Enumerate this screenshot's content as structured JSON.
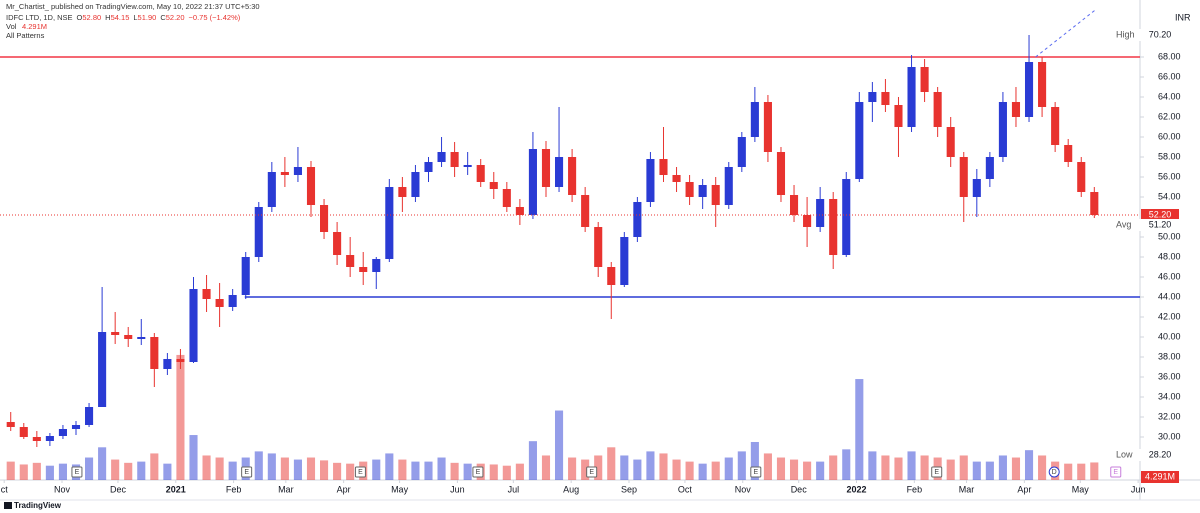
{
  "header": {
    "publisher": "Mr_Chartist_ published on TradingView.com, May 10, 2022 21:37 UTC+5:30",
    "symbol": "IDFC LTD, 1D, NSE",
    "ohlc": [
      {
        "key": "O",
        "value": "52.80"
      },
      {
        "key": "H",
        "value": "54.15"
      },
      {
        "key": "L",
        "value": "51.90"
      },
      {
        "key": "C",
        "value": "52.20"
      }
    ],
    "change": "−0.75 (−1.42%)",
    "volume_key": "Vol",
    "indicator": "All Patterns"
  },
  "footer": {
    "brand": "TradingView"
  },
  "chart_data": {
    "type": "candlestick",
    "currency": "INR",
    "up_color": "#2a3bd4",
    "down_color": "#e8332f",
    "xlim": [
      -2.25,
      609
    ],
    "ylim": [
      25.7,
      72.7
    ],
    "y2lim": [
      0,
      115
    ],
    "xticks": [
      {
        "value": 0,
        "label": "ct"
      },
      {
        "value": 31,
        "label": "Nov"
      },
      {
        "value": 61,
        "label": "Dec"
      },
      {
        "value": 92,
        "label": "2021"
      },
      {
        "value": 123,
        "label": "Feb"
      },
      {
        "value": 151,
        "label": "Mar"
      },
      {
        "value": 182,
        "label": "Apr"
      },
      {
        "value": 212,
        "label": "May"
      },
      {
        "value": 243,
        "label": "Jun"
      },
      {
        "value": 273,
        "label": "Jul"
      },
      {
        "value": 304,
        "label": "Aug"
      },
      {
        "value": 335,
        "label": "Sep"
      },
      {
        "value": 365,
        "label": "Oct"
      },
      {
        "value": 396,
        "label": "Nov"
      },
      {
        "value": 426,
        "label": "Dec"
      },
      {
        "value": 457,
        "label": "2022"
      },
      {
        "value": 488,
        "label": "Feb"
      },
      {
        "value": 516,
        "label": "Mar"
      },
      {
        "value": 547,
        "label": "Apr"
      },
      {
        "value": 577,
        "label": "May"
      },
      {
        "value": 608,
        "label": "Jun"
      }
    ],
    "yticks": [
      {
        "value": 30,
        "label": "30.00"
      },
      {
        "value": 32,
        "label": "32.00"
      },
      {
        "value": 34,
        "label": "34.00"
      },
      {
        "value": 36,
        "label": "36.00"
      },
      {
        "value": 38,
        "label": "38.00"
      },
      {
        "value": 40,
        "label": "40.00"
      },
      {
        "value": 42,
        "label": "42.00"
      },
      {
        "value": 44,
        "label": "44.00"
      },
      {
        "value": 46,
        "label": "46.00"
      },
      {
        "value": 48,
        "label": "48.00"
      },
      {
        "value": 50,
        "label": "50.00"
      },
      {
        "value": 54,
        "label": "54.00"
      },
      {
        "value": 56,
        "label": "56.00"
      },
      {
        "value": 58,
        "label": "58.00"
      },
      {
        "value": 60,
        "label": "60.00"
      },
      {
        "value": 62,
        "label": "62.00"
      },
      {
        "value": 64,
        "label": "64.00"
      },
      {
        "value": 66,
        "label": "66.00"
      },
      {
        "value": 68,
        "label": "68.00"
      }
    ],
    "x": [
      3.5,
      10.5,
      17.5,
      24.5,
      31.5,
      38.5,
      45.5,
      52.5,
      59.5,
      66.5,
      73.5,
      80.5,
      87.5,
      94.5,
      101.5,
      108.5,
      115.5,
      122.5,
      129.5,
      136.5,
      143.5,
      150.5,
      157.5,
      164.5,
      171.5,
      178.5,
      185.5,
      192.5,
      199.5,
      206.5,
      213.5,
      220.5,
      227.5,
      234.5,
      241.5,
      248.5,
      255.5,
      262.5,
      269.5,
      276.5,
      283.5,
      290.5,
      297.5,
      304.5,
      311.5,
      318.5,
      325.5,
      332.5,
      339.5,
      346.5,
      353.5,
      360.5,
      367.5,
      374.5,
      381.5,
      388.5,
      395.5,
      402.5,
      409.5,
      416.5,
      423.5,
      430.5,
      437.5,
      444.5,
      451.5,
      458.5,
      465.5,
      472.5,
      479.5,
      486.5,
      493.5,
      500.5,
      507.5,
      514.5,
      521.5,
      528.5,
      535.5,
      542.5,
      549.5,
      556.5,
      563.5,
      570.5,
      577.5,
      584.5
    ],
    "open": [
      31.5,
      31.0,
      30.0,
      29.6,
      30.1,
      30.8,
      31.2,
      33.0,
      40.5,
      40.2,
      39.8,
      40.0,
      36.8,
      37.8,
      37.5,
      44.8,
      43.8,
      43.0,
      44.2,
      48.0,
      53.0,
      56.5,
      56.2,
      57.0,
      53.2,
      50.5,
      48.2,
      47.0,
      46.5,
      47.8,
      55.0,
      54.0,
      56.5,
      57.5,
      58.5,
      57.0,
      57.2,
      55.5,
      54.8,
      53.0,
      52.2,
      58.8,
      55.0,
      58.0,
      54.2,
      51.0,
      47.0,
      45.2,
      50.0,
      53.5,
      57.8,
      56.2,
      55.5,
      54.0,
      55.2,
      53.2,
      57.0,
      60.0,
      63.5,
      58.5,
      54.2,
      52.2,
      51.0,
      53.8,
      48.2,
      55.8,
      63.5,
      64.5,
      63.2,
      61.0,
      67.0,
      64.5,
      61.0,
      58.0,
      54.0,
      55.8,
      58.0,
      63.5,
      62.0,
      67.5,
      63.0,
      59.2,
      57.5,
      54.5
    ],
    "high": [
      32.5,
      31.4,
      30.6,
      30.4,
      31.2,
      31.6,
      33.4,
      45.0,
      42.5,
      41.0,
      41.8,
      40.4,
      38.4,
      38.8,
      46.0,
      46.2,
      45.4,
      44.8,
      48.5,
      53.5,
      57.5,
      58.0,
      59.0,
      57.6,
      53.8,
      51.5,
      50.0,
      48.5,
      48.0,
      55.8,
      56.0,
      57.2,
      58.0,
      60.0,
      59.5,
      58.5,
      57.8,
      56.5,
      55.5,
      53.8,
      60.5,
      59.6,
      63.0,
      58.8,
      55.0,
      51.5,
      47.5,
      50.5,
      54.0,
      58.5,
      61.0,
      57.0,
      56.2,
      55.8,
      56.0,
      57.5,
      60.5,
      65.0,
      64.2,
      59.0,
      55.2,
      54.0,
      55.0,
      54.5,
      56.5,
      64.5,
      65.5,
      65.8,
      64.0,
      68.2,
      67.8,
      65.0,
      62.0,
      58.5,
      56.8,
      58.5,
      64.5,
      65.0,
      70.2,
      68.0,
      63.5,
      59.8,
      58.0,
      55.0
    ],
    "low": [
      30.6,
      29.8,
      29.0,
      29.1,
      29.8,
      30.2,
      31.0,
      33.0,
      39.3,
      39.0,
      39.2,
      35.0,
      36.2,
      36.8,
      37.4,
      42.5,
      41.0,
      42.6,
      43.8,
      47.5,
      52.5,
      55.0,
      55.5,
      52.0,
      49.8,
      47.2,
      46.0,
      45.2,
      44.8,
      47.5,
      52.5,
      53.5,
      55.5,
      57.0,
      56.0,
      56.2,
      55.0,
      53.8,
      52.5,
      51.2,
      51.8,
      54.0,
      54.5,
      53.5,
      50.5,
      46.0,
      41.8,
      45.0,
      49.5,
      53.0,
      55.5,
      54.5,
      53.2,
      52.8,
      51.0,
      52.8,
      56.5,
      59.5,
      57.5,
      53.5,
      51.5,
      49.0,
      50.5,
      46.8,
      48.0,
      55.5,
      61.5,
      62.5,
      58.0,
      60.5,
      63.5,
      60.0,
      57.0,
      51.5,
      52.0,
      55.0,
      57.5,
      61.0,
      61.5,
      62.0,
      58.5,
      57.0,
      54.0,
      51.9
    ],
    "close": [
      31.0,
      30.0,
      29.6,
      30.1,
      30.8,
      31.2,
      33.0,
      40.5,
      40.2,
      39.8,
      40.0,
      36.8,
      37.8,
      37.5,
      44.8,
      43.8,
      43.0,
      44.2,
      48.0,
      53.0,
      56.5,
      56.2,
      57.0,
      53.2,
      50.5,
      48.2,
      47.0,
      46.5,
      47.8,
      55.0,
      54.0,
      56.5,
      57.5,
      58.5,
      57.0,
      57.2,
      55.5,
      54.8,
      53.0,
      52.2,
      58.8,
      55.0,
      58.0,
      54.2,
      51.0,
      47.0,
      45.2,
      50.0,
      53.5,
      57.8,
      56.2,
      55.5,
      54.0,
      55.2,
      53.2,
      57.0,
      60.0,
      63.5,
      58.5,
      54.2,
      52.2,
      51.0,
      53.8,
      48.2,
      55.8,
      63.5,
      64.5,
      63.2,
      61.0,
      67.0,
      64.5,
      61.0,
      58.0,
      54.0,
      55.8,
      58.0,
      63.5,
      62.0,
      67.5,
      63.0,
      59.2,
      57.5,
      54.5,
      52.2
    ],
    "volume": [
      4.5,
      3.8,
      4.2,
      3.5,
      4,
      3.8,
      5.5,
      8,
      5,
      4.2,
      4.5,
      6.5,
      4,
      30.6,
      11,
      6,
      5.5,
      4.5,
      5.5,
      7,
      6.5,
      5.5,
      5,
      5.5,
      4.8,
      4.2,
      4,
      4.5,
      5,
      6.5,
      5,
      4.5,
      4.5,
      5.5,
      4.2,
      4,
      4,
      3.8,
      3.5,
      4,
      9.5,
      6,
      17,
      5.5,
      5,
      6,
      8,
      6,
      5,
      7,
      6.5,
      5,
      4.5,
      4,
      4.5,
      5.5,
      7,
      9.3,
      6.5,
      5.5,
      5,
      4.5,
      4.5,
      6,
      7.5,
      24.7,
      7,
      6,
      5.5,
      7,
      6,
      5.5,
      5,
      6,
      4.5,
      4.5,
      6,
      5.5,
      7.3,
      6,
      4.5,
      4,
      4,
      4.291
    ],
    "last_volume_label": "4.291M",
    "last_price": {
      "value": 52.2,
      "label": "52.20"
    },
    "price_markers": [
      {
        "name": "High",
        "value": 70.2,
        "label": "70.20"
      },
      {
        "name": "Avg",
        "value": 51.2,
        "label": "51.20"
      },
      {
        "name": "Low",
        "value": 28.2,
        "label": "28.20"
      }
    ],
    "levels": [
      {
        "value": 68,
        "start": -2.25,
        "color": "#f23645"
      },
      {
        "value": 44,
        "start": 129,
        "color": "#2a3bd4"
      }
    ],
    "trendline": {
      "x": [
        553,
        585
      ],
      "y": [
        68,
        72.7
      ],
      "color": "#5b6cf0"
    },
    "events": [
      {
        "x": 39,
        "label": "E"
      },
      {
        "x": 130,
        "label": "E"
      },
      {
        "x": 191,
        "label": "E"
      },
      {
        "x": 254,
        "label": "E"
      },
      {
        "x": 315,
        "label": "E"
      },
      {
        "x": 403,
        "label": "E"
      },
      {
        "x": 500,
        "label": "E"
      },
      {
        "x": 563,
        "label": "D"
      },
      {
        "x": 596,
        "label": "E"
      }
    ]
  }
}
